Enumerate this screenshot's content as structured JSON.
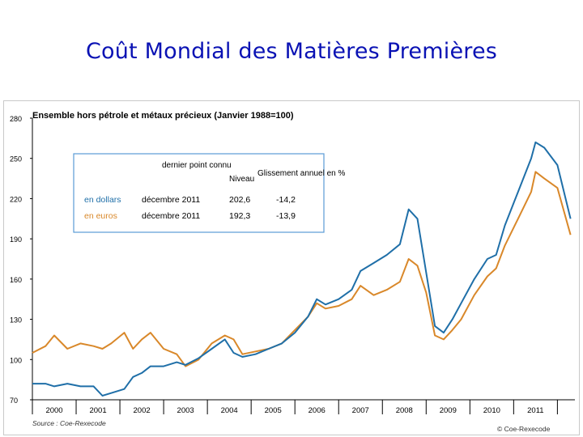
{
  "page": {
    "title": "Coût Mondial des Matières Premières"
  },
  "chart_data": {
    "type": "line",
    "title": "Ensemble hors pétrole et métaux précieux (Janvier 1988=100)",
    "source": "Source : Coe-Rexecode",
    "credit": "© Coe-Rexecode",
    "ylim": [
      70,
      280
    ],
    "y_ticks": [
      70,
      100,
      130,
      160,
      190,
      220,
      250,
      280
    ],
    "x_range": [
      1999.5,
      2011.9
    ],
    "x_ticks": [
      "2000",
      "2001",
      "2002",
      "2003",
      "2004",
      "2005",
      "2006",
      "2007",
      "2008",
      "2009",
      "2010",
      "2011"
    ],
    "grid": false,
    "colors": {
      "dollars": "#1f6fa8",
      "euros": "#d9882a",
      "inset_border": "#5b9bd5",
      "title": "#0a12b4"
    },
    "series": [
      {
        "name": "en dollars",
        "color": "#1f6fa8",
        "x": [
          1999.5,
          1999.8,
          2000.0,
          2000.3,
          2000.6,
          2000.9,
          2001.1,
          2001.3,
          2001.6,
          2001.8,
          2002.0,
          2002.2,
          2002.5,
          2002.8,
          2003.0,
          2003.3,
          2003.6,
          2003.9,
          2004.1,
          2004.3,
          2004.6,
          2004.9,
          2005.2,
          2005.5,
          2005.8,
          2006.0,
          2006.2,
          2006.5,
          2006.8,
          2007.0,
          2007.3,
          2007.6,
          2007.9,
          2008.1,
          2008.3,
          2008.5,
          2008.7,
          2008.9,
          2009.1,
          2009.3,
          2009.6,
          2009.9,
          2010.1,
          2010.3,
          2010.6,
          2010.9,
          2011.0,
          2011.2,
          2011.5,
          2011.8
        ],
        "values": [
          82,
          82,
          80,
          82,
          80,
          80,
          73,
          75,
          78,
          87,
          90,
          95,
          95,
          98,
          96,
          101,
          108,
          115,
          105,
          102,
          104,
          108,
          112,
          120,
          132,
          145,
          141,
          145,
          152,
          166,
          172,
          178,
          186,
          212,
          205,
          165,
          125,
          120,
          130,
          142,
          160,
          175,
          178,
          200,
          225,
          250,
          262,
          258,
          245,
          205
        ]
      },
      {
        "name": "en euros",
        "color": "#d9882a",
        "x": [
          1999.5,
          1999.8,
          2000.0,
          2000.3,
          2000.6,
          2000.9,
          2001.1,
          2001.3,
          2001.6,
          2001.8,
          2002.0,
          2002.2,
          2002.5,
          2002.8,
          2003.0,
          2003.3,
          2003.6,
          2003.9,
          2004.1,
          2004.3,
          2004.6,
          2004.9,
          2005.2,
          2005.5,
          2005.8,
          2006.0,
          2006.2,
          2006.5,
          2006.8,
          2007.0,
          2007.3,
          2007.6,
          2007.9,
          2008.1,
          2008.3,
          2008.5,
          2008.7,
          2008.9,
          2009.1,
          2009.3,
          2009.6,
          2009.9,
          2010.1,
          2010.3,
          2010.6,
          2010.9,
          2011.0,
          2011.2,
          2011.5,
          2011.8
        ],
        "values": [
          105,
          110,
          118,
          108,
          112,
          110,
          108,
          112,
          120,
          108,
          115,
          120,
          108,
          104,
          95,
          100,
          112,
          118,
          115,
          104,
          106,
          108,
          112,
          122,
          132,
          142,
          138,
          140,
          145,
          155,
          148,
          152,
          158,
          175,
          170,
          150,
          118,
          115,
          122,
          130,
          148,
          162,
          168,
          185,
          205,
          225,
          240,
          235,
          228,
          193
        ]
      }
    ],
    "inset": {
      "header": "dernier point connu",
      "col_level": "Niveau",
      "col_slide": "Glissement annuel en %",
      "rows": [
        {
          "label": "en dollars",
          "date": "décembre 2011",
          "level": "202,6",
          "slide": "-14,2"
        },
        {
          "label": "en euros",
          "date": "décembre 2011",
          "level": "192,3",
          "slide": "-13,9"
        }
      ]
    }
  }
}
